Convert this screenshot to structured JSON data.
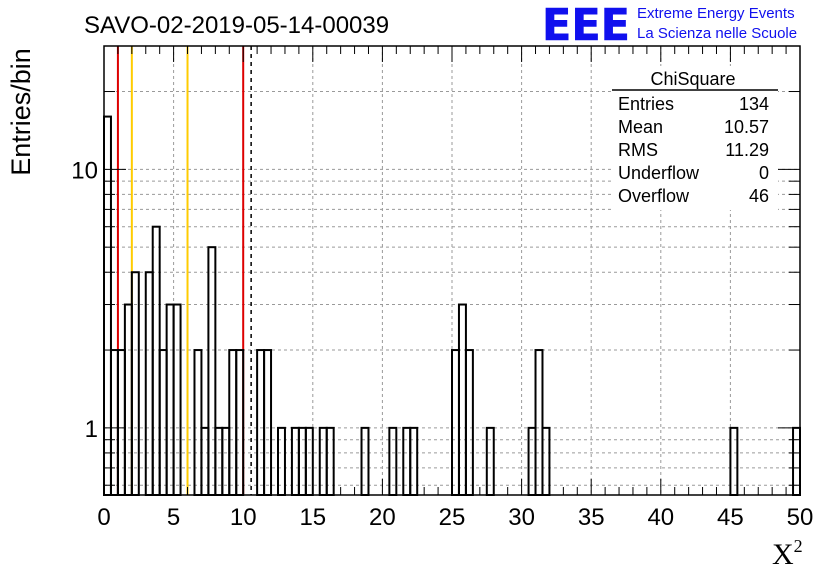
{
  "chart_data": {
    "type": "bar",
    "title": "SAVO-02-2019-05-14-00039",
    "xlabel": "X²",
    "ylabel": "Entries/bin",
    "xlim": [
      0,
      50
    ],
    "ylim": [
      0.55,
      30
    ],
    "yscale": "log",
    "grid": true,
    "bin_width": 0.5,
    "x_ticks": [
      "0",
      "5",
      "10",
      "15",
      "20",
      "25",
      "30",
      "35",
      "40",
      "45",
      "50"
    ],
    "y_ticks": [
      {
        "label": "1",
        "value": 1
      },
      {
        "label": "10",
        "value": 10
      }
    ],
    "bins": [
      {
        "x": 0.0,
        "y": 16
      },
      {
        "x": 0.5,
        "y": 2
      },
      {
        "x": 1.0,
        "y": 2
      },
      {
        "x": 1.5,
        "y": 3
      },
      {
        "x": 2.0,
        "y": 4
      },
      {
        "x": 2.5,
        "y": 0
      },
      {
        "x": 3.0,
        "y": 4
      },
      {
        "x": 3.5,
        "y": 6
      },
      {
        "x": 4.0,
        "y": 2
      },
      {
        "x": 4.5,
        "y": 3
      },
      {
        "x": 5.0,
        "y": 3
      },
      {
        "x": 5.5,
        "y": 0
      },
      {
        "x": 6.0,
        "y": 0
      },
      {
        "x": 6.5,
        "y": 2
      },
      {
        "x": 7.0,
        "y": 1
      },
      {
        "x": 7.5,
        "y": 5
      },
      {
        "x": 8.0,
        "y": 1
      },
      {
        "x": 8.5,
        "y": 1
      },
      {
        "x": 9.0,
        "y": 2
      },
      {
        "x": 9.5,
        "y": 2
      },
      {
        "x": 10.0,
        "y": 0
      },
      {
        "x": 10.5,
        "y": 0
      },
      {
        "x": 11.0,
        "y": 2
      },
      {
        "x": 11.5,
        "y": 2
      },
      {
        "x": 12.0,
        "y": 0
      },
      {
        "x": 12.5,
        "y": 1
      },
      {
        "x": 13.0,
        "y": 0
      },
      {
        "x": 13.5,
        "y": 1
      },
      {
        "x": 14.0,
        "y": 1
      },
      {
        "x": 14.5,
        "y": 1
      },
      {
        "x": 15.0,
        "y": 0
      },
      {
        "x": 15.5,
        "y": 1
      },
      {
        "x": 16.0,
        "y": 1
      },
      {
        "x": 16.5,
        "y": 0
      },
      {
        "x": 17.0,
        "y": 0
      },
      {
        "x": 17.5,
        "y": 0
      },
      {
        "x": 18.0,
        "y": 0
      },
      {
        "x": 18.5,
        "y": 1
      },
      {
        "x": 19.0,
        "y": 0
      },
      {
        "x": 19.5,
        "y": 0
      },
      {
        "x": 20.0,
        "y": 0
      },
      {
        "x": 20.5,
        "y": 1
      },
      {
        "x": 21.0,
        "y": 0
      },
      {
        "x": 21.5,
        "y": 1
      },
      {
        "x": 22.0,
        "y": 1
      },
      {
        "x": 22.5,
        "y": 0
      },
      {
        "x": 23.0,
        "y": 0
      },
      {
        "x": 23.5,
        "y": 0
      },
      {
        "x": 24.0,
        "y": 0
      },
      {
        "x": 24.5,
        "y": 0
      },
      {
        "x": 25.0,
        "y": 2
      },
      {
        "x": 25.5,
        "y": 3
      },
      {
        "x": 26.0,
        "y": 2
      },
      {
        "x": 26.5,
        "y": 0
      },
      {
        "x": 27.0,
        "y": 0
      },
      {
        "x": 27.5,
        "y": 1
      },
      {
        "x": 28.0,
        "y": 0
      },
      {
        "x": 28.5,
        "y": 0
      },
      {
        "x": 29.0,
        "y": 0
      },
      {
        "x": 29.5,
        "y": 0
      },
      {
        "x": 30.0,
        "y": 0
      },
      {
        "x": 30.5,
        "y": 1
      },
      {
        "x": 31.0,
        "y": 2
      },
      {
        "x": 31.5,
        "y": 1
      },
      {
        "x": 45.0,
        "y": 1
      },
      {
        "x": 49.5,
        "y": 1
      }
    ],
    "vertical_lines": [
      {
        "x": 1,
        "color": "#dd0000",
        "style": "solid"
      },
      {
        "x": 2,
        "color": "#ffcc00",
        "style": "solid"
      },
      {
        "x": 6,
        "color": "#ffcc00",
        "style": "solid"
      },
      {
        "x": 10,
        "color": "#dd0000",
        "style": "solid"
      },
      {
        "x": 10.57,
        "color": "#000000",
        "style": "dashed"
      }
    ],
    "stats_box": {
      "title": "ChiSquare",
      "rows": [
        {
          "label": "Entries",
          "value": "134"
        },
        {
          "label": "Mean",
          "value": "10.57"
        },
        {
          "label": "RMS",
          "value": "11.29"
        },
        {
          "label": "Underflow",
          "value": "0"
        },
        {
          "label": "Overflow",
          "value": "46"
        }
      ]
    }
  },
  "logo": {
    "mark": "EEE",
    "line1": "Extreme Energy Events",
    "line2": "La Scienza nelle Scuole",
    "color": "#1010ee"
  }
}
